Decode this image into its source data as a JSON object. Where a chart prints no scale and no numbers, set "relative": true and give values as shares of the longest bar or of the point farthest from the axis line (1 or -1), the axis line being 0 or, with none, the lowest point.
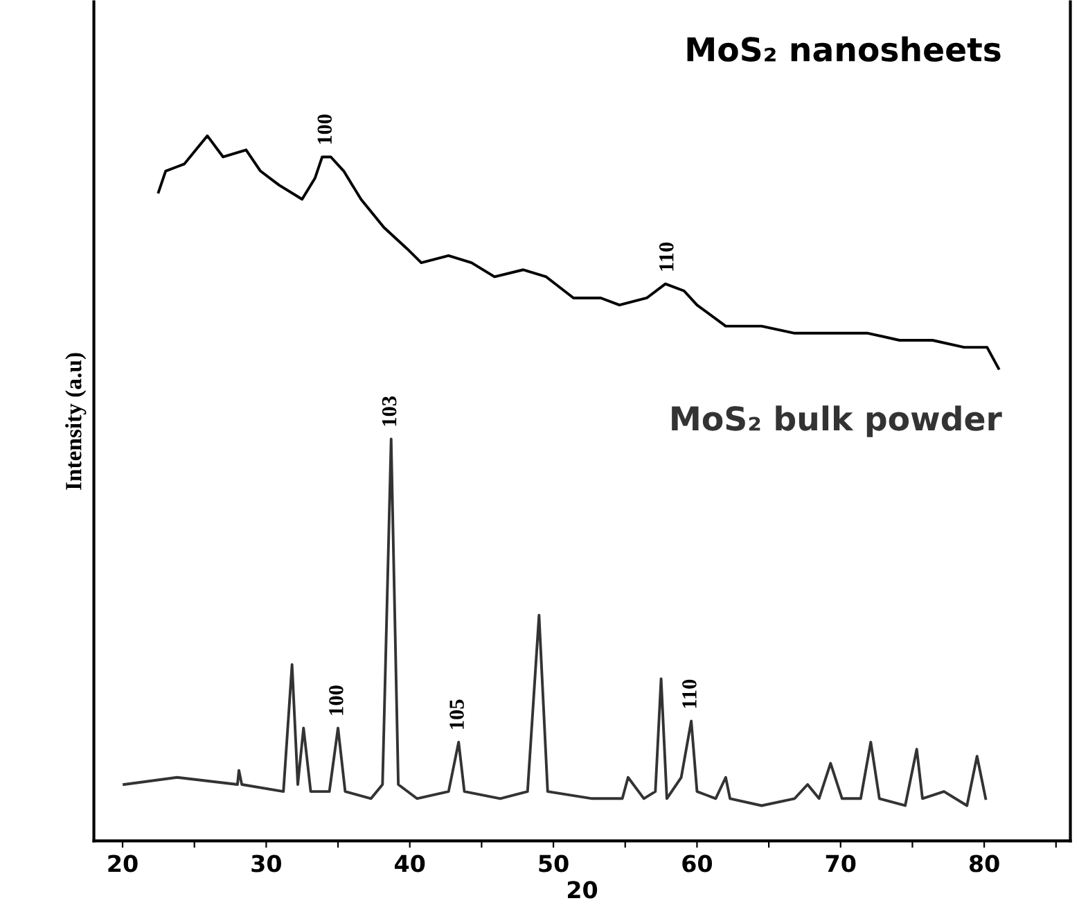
{
  "chart_data": {
    "type": "line",
    "relative": true,
    "xlabel": "20",
    "ylabel": "Intensity (a.u)",
    "xlim": [
      18,
      86
    ],
    "xticks": [
      20,
      {
        "value": 25,
        "label": null
      },
      30,
      {
        "value": 35,
        "label": null
      },
      40,
      {
        "value": 45,
        "label": null
      },
      50,
      {
        "value": 55,
        "label": null
      },
      60,
      {
        "value": 65,
        "label": null
      },
      70,
      {
        "value": 75,
        "label": null
      },
      80,
      {
        "value": 85,
        "label": null
      }
    ],
    "tick_labels": "x",
    "grid": false,
    "legend": false,
    "marker": "none",
    "line_style": "solid",
    "series": [
      {
        "name": "MoS₂ nanosheets",
        "color": "#000000",
        "x": [
          22.5,
          23.0,
          24.3,
          25.1,
          25.9,
          27.0,
          28.6,
          29.6,
          30.9,
          32.5,
          33.4,
          33.9,
          34.5,
          35.4,
          36.6,
          38.2,
          39.8,
          40.8,
          42.7,
          44.3,
          45.9,
          47.9,
          49.5,
          51.4,
          53.3,
          54.6,
          56.5,
          57.8,
          59.1,
          60.0,
          62.0,
          64.5,
          66.8,
          69.3,
          71.9,
          74.1,
          76.4,
          78.6,
          80.2,
          81.0
        ],
        "values": [
          0.92,
          0.95,
          0.96,
          0.98,
          1,
          0.97,
          0.98,
          0.95,
          0.93,
          0.91,
          0.94,
          0.97,
          0.97,
          0.95,
          0.91,
          0.87,
          0.84,
          0.82,
          0.83,
          0.82,
          0.8,
          0.81,
          0.8,
          0.77,
          0.77,
          0.76,
          0.77,
          0.79,
          0.78,
          0.76,
          0.73,
          0.73,
          0.72,
          0.72,
          0.72,
          0.71,
          0.71,
          0.7,
          0.7,
          0.67
        ]
      },
      {
        "name": "MoS₂ bulk powder",
        "color": "#333333",
        "x": [
          20.1,
          23.8,
          28.0,
          28.1,
          28.3,
          31.2,
          31.8,
          32.2,
          32.6,
          33.1,
          34.4,
          35.0,
          35.5,
          37.3,
          38.1,
          38.7,
          39.2,
          40.5,
          42.7,
          43.4,
          43.8,
          46.3,
          48.2,
          49.0,
          49.6,
          52.7,
          54.8,
          55.2,
          56.3,
          57.1,
          57.5,
          57.9,
          58.9,
          59.6,
          60.0,
          61.3,
          62.0,
          62.3,
          64.5,
          66.8,
          67.7,
          68.5,
          69.3,
          70.1,
          71.4,
          72.1,
          72.7,
          74.5,
          75.3,
          75.7,
          77.2,
          78.8,
          79.5,
          80.1
        ],
        "values": [
          0.08,
          0.09,
          0.08,
          0.1,
          0.08,
          0.07,
          0.25,
          0.08,
          0.16,
          0.07,
          0.07,
          0.16,
          0.07,
          0.06,
          0.08,
          0.57,
          0.08,
          0.06,
          0.07,
          0.14,
          0.07,
          0.06,
          0.07,
          0.32,
          0.07,
          0.06,
          0.06,
          0.09,
          0.06,
          0.07,
          0.23,
          0.06,
          0.09,
          0.17,
          0.07,
          0.06,
          0.09,
          0.06,
          0.05,
          0.06,
          0.08,
          0.06,
          0.11,
          0.06,
          0.06,
          0.14,
          0.06,
          0.05,
          0.13,
          0.06,
          0.07,
          0.05,
          0.12,
          0.06
        ]
      }
    ],
    "annotations": [
      {
        "text": "100",
        "x": 34.2,
        "y": 0.97
      },
      {
        "text": "110",
        "x": 58.0,
        "y": 0.79
      },
      {
        "text": "103",
        "x": 38.7,
        "y": 0.57
      },
      {
        "text": "100",
        "x": 35.0,
        "y": 0.16
      },
      {
        "text": "105",
        "x": 43.4,
        "y": 0.14
      },
      {
        "text": "110",
        "x": 59.6,
        "y": 0.17
      }
    ]
  }
}
